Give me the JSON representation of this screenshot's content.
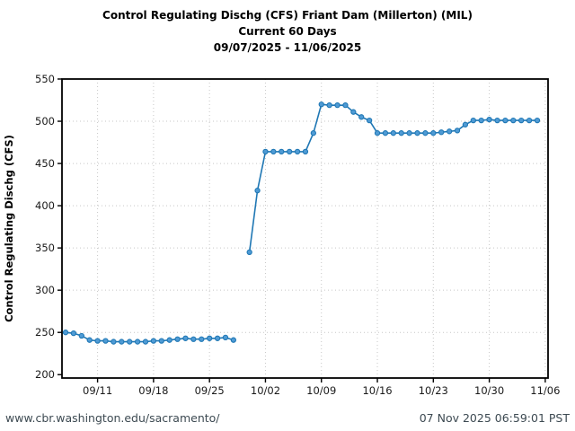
{
  "header": {
    "title_line1": "Control Regulating Dischg (CFS) Friant Dam (Millerton) (MIL)",
    "title_line2": "Current 60 Days",
    "title_line3": "09/07/2025 - 11/06/2025"
  },
  "footer": {
    "url": "www.cbr.washington.edu/sacramento/",
    "timestamp": "07 Nov 2025 06:59:01 PST"
  },
  "colors": {
    "line": "#1f77b4",
    "marker_fill": "#4f9bd5",
    "marker_edge": "#1f77b4",
    "grid": "#c7c7c7",
    "axis": "#000000",
    "tick_label": "#1a1a1a",
    "footer_text": "#3d4a52"
  },
  "chart_data": {
    "type": "line",
    "title": "Control Regulating Dischg (CFS) Friant Dam (Millerton) (MIL)",
    "subtitle": "Current 60 Days",
    "date_range": "09/07/2025 - 11/06/2025",
    "xlabel": "",
    "ylabel": "Control Regulating Dischg (CFS)",
    "ylim": [
      196,
      550
    ],
    "yticks": [
      200,
      250,
      300,
      350,
      400,
      450,
      500,
      550
    ],
    "xtick_labels": [
      "09/11",
      "09/18",
      "09/25",
      "10/02",
      "10/09",
      "10/16",
      "10/23",
      "10/30",
      "11/06"
    ],
    "grid": "dotted both axes",
    "legend": "none",
    "series_name": "Control Regulating Dischg (CFS)",
    "points": [
      {
        "date": "09/07",
        "value": 250
      },
      {
        "date": "09/08",
        "value": 249
      },
      {
        "date": "09/09",
        "value": 246
      },
      {
        "date": "09/10",
        "value": 241
      },
      {
        "date": "09/11",
        "value": 240
      },
      {
        "date": "09/12",
        "value": 240
      },
      {
        "date": "09/13",
        "value": 239
      },
      {
        "date": "09/14",
        "value": 239
      },
      {
        "date": "09/15",
        "value": 239
      },
      {
        "date": "09/16",
        "value": 239
      },
      {
        "date": "09/17",
        "value": 239
      },
      {
        "date": "09/18",
        "value": 240
      },
      {
        "date": "09/19",
        "value": 240
      },
      {
        "date": "09/20",
        "value": 241
      },
      {
        "date": "09/21",
        "value": 242
      },
      {
        "date": "09/22",
        "value": 243
      },
      {
        "date": "09/23",
        "value": 242
      },
      {
        "date": "09/24",
        "value": 242
      },
      {
        "date": "09/25",
        "value": 243
      },
      {
        "date": "09/26",
        "value": 243
      },
      {
        "date": "09/27",
        "value": 244
      },
      {
        "date": "09/28",
        "value": 241
      },
      {
        "date": "09/29",
        "value": null
      },
      {
        "date": "09/30",
        "value": 345
      },
      {
        "date": "10/01",
        "value": 418
      },
      {
        "date": "10/02",
        "value": 464
      },
      {
        "date": "10/03",
        "value": 464
      },
      {
        "date": "10/04",
        "value": 464
      },
      {
        "date": "10/05",
        "value": 464
      },
      {
        "date": "10/06",
        "value": 464
      },
      {
        "date": "10/07",
        "value": 464
      },
      {
        "date": "10/08",
        "value": 486
      },
      {
        "date": "10/09",
        "value": 520
      },
      {
        "date": "10/10",
        "value": 519
      },
      {
        "date": "10/11",
        "value": 519
      },
      {
        "date": "10/12",
        "value": 519
      },
      {
        "date": "10/13",
        "value": 511
      },
      {
        "date": "10/14",
        "value": 505
      },
      {
        "date": "10/15",
        "value": 501
      },
      {
        "date": "10/16",
        "value": 486
      },
      {
        "date": "10/17",
        "value": 486
      },
      {
        "date": "10/18",
        "value": 486
      },
      {
        "date": "10/19",
        "value": 486
      },
      {
        "date": "10/20",
        "value": 486
      },
      {
        "date": "10/21",
        "value": 486
      },
      {
        "date": "10/22",
        "value": 486
      },
      {
        "date": "10/23",
        "value": 486
      },
      {
        "date": "10/24",
        "value": 487
      },
      {
        "date": "10/25",
        "value": 488
      },
      {
        "date": "10/26",
        "value": 489
      },
      {
        "date": "10/27",
        "value": 496
      },
      {
        "date": "10/28",
        "value": 501
      },
      {
        "date": "10/29",
        "value": 501
      },
      {
        "date": "10/30",
        "value": 502
      },
      {
        "date": "10/31",
        "value": 501
      },
      {
        "date": "11/01",
        "value": 501
      },
      {
        "date": "11/02",
        "value": 501
      },
      {
        "date": "11/03",
        "value": 501
      },
      {
        "date": "11/04",
        "value": 501
      },
      {
        "date": "11/05",
        "value": 501
      }
    ]
  }
}
